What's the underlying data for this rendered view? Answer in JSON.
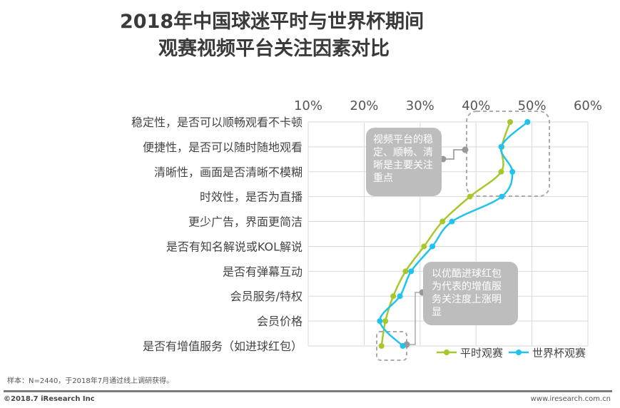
{
  "header": {
    "title_line1": "2018年中国球迷平时与世界杯期间",
    "title_line2": "观赛视频平台关注因素对比"
  },
  "chart_data": {
    "type": "line",
    "orientation": "horizontal",
    "categories": [
      "稳定性，是否可以顺畅观看不卡顿",
      "便捷性，是否可以随时随地观看",
      "清晰性，画面是否清晰不模糊",
      "时效性，是否为直播",
      "更少广告，界面更简洁",
      "是否有知名解说或KOL解说",
      "是否有弹幕互动",
      "会员服务/特权",
      "会员价格",
      "是否有增值服务（如进球红包）"
    ],
    "xlim": [
      10,
      60
    ],
    "xticks": [
      "10%",
      "20%",
      "30%",
      "40%",
      "50%",
      "60%"
    ],
    "grid": true,
    "legend": "bottom-right",
    "series": [
      {
        "name": "平时观赛",
        "color": "#a6c82d",
        "values": [
          46.1,
          44.6,
          44.5,
          38.9,
          34.0,
          30.7,
          27.4,
          25.2,
          23.8,
          23.1
        ]
      },
      {
        "name": "世界杯观赛",
        "color": "#1fc3ee",
        "values": [
          49.2,
          44.5,
          46.5,
          44.6,
          35.7,
          32.2,
          28.4,
          26.4,
          22.8,
          26.9
        ]
      }
    ],
    "annotations": [
      "视频平台的稳定、顺畅、清晰是主要关注重点",
      "以优酷进球红包为代表的增值服务关注度上涨明显"
    ]
  },
  "footer": {
    "note": "样本：N=2440，于2018年7月通过线上调研获得。",
    "copyright": "©2018.7 iResearch Inc",
    "url": "www.iresearch.com.cn"
  }
}
